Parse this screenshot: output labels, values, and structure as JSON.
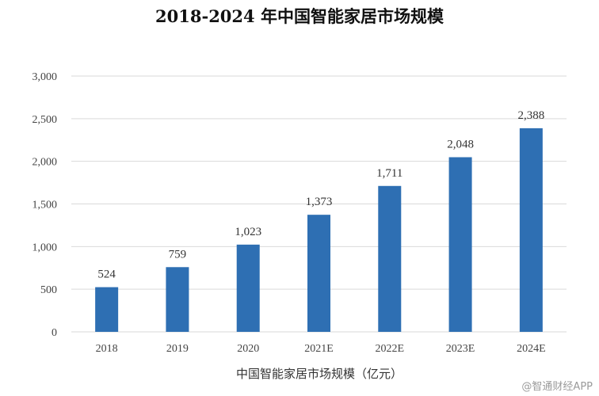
{
  "chart_data": {
    "type": "bar",
    "title": "2018-2024 年中国智能家居市场规模",
    "xlabel": "中国智能家居市场规模（亿元）",
    "ylabel": "",
    "categories": [
      "2018",
      "2019",
      "2020",
      "2021E",
      "2022E",
      "2023E",
      "2024E"
    ],
    "values": [
      524,
      759,
      1023,
      1373,
      1711,
      2048,
      2388
    ],
    "value_labels": [
      "524",
      "759",
      "1,023",
      "1,373",
      "1,711",
      "2,048",
      "2,388"
    ],
    "ylim": [
      0,
      3000
    ],
    "yticks": [
      0,
      500,
      1000,
      1500,
      2000,
      2500,
      3000
    ],
    "ytick_labels": [
      "0",
      "500",
      "1,000",
      "1,500",
      "2,000",
      "2,500",
      "3,000"
    ],
    "grid": true,
    "bar_color": "#2E6FB3",
    "grid_color": "#d9d9d9"
  },
  "watermark": "@智通财经APP"
}
